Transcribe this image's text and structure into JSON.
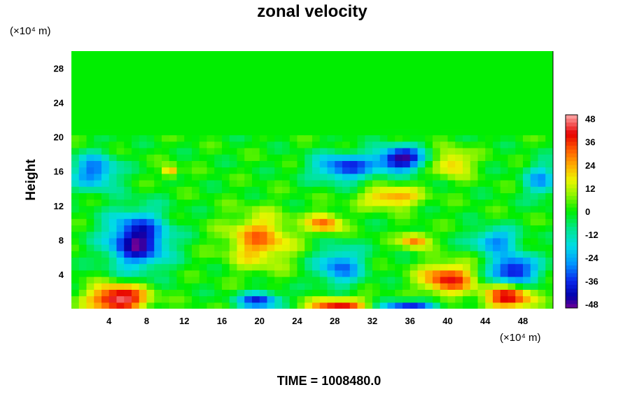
{
  "chart_data": {
    "type": "heatmap",
    "title": "zonal velocity",
    "ylabel": "Height",
    "xlabel": "",
    "y_unit": "(×10⁴ m)",
    "x_unit": "(×10⁴ m)",
    "footer": "TIME = 1008480.0",
    "xlim": [
      0,
      51.2
    ],
    "ylim": [
      0,
      30
    ],
    "x_ticks": [
      4,
      8,
      12,
      16,
      20,
      24,
      28,
      32,
      36,
      40,
      44,
      48
    ],
    "y_ticks": [
      4,
      8,
      12,
      16,
      20,
      24,
      28
    ],
    "colorbar": {
      "range": [
        -50,
        50
      ],
      "tick_labels": [
        "48",
        "36",
        "24",
        "12",
        "0",
        "-12",
        "-24",
        "-36",
        "-48"
      ],
      "tick_values": [
        48,
        36,
        24,
        12,
        0,
        -12,
        -24,
        -36,
        -48
      ]
    },
    "features": [
      {
        "x": 5,
        "y": 1.2,
        "value": 50,
        "sx": 3,
        "sy": 1.6
      },
      {
        "x": 46.5,
        "y": 1.4,
        "value": 42,
        "sx": 2.5,
        "sy": 1.5
      },
      {
        "x": 28.5,
        "y": 0.3,
        "value": 40,
        "sx": 3,
        "sy": 1
      },
      {
        "x": 40,
        "y": 3.5,
        "value": 38,
        "sx": 2.8,
        "sy": 1.8
      },
      {
        "x": 20,
        "y": 8,
        "value": 28,
        "sx": 3.4,
        "sy": 3
      },
      {
        "x": 27,
        "y": 10,
        "value": 30,
        "sx": 1.8,
        "sy": 1.2
      },
      {
        "x": 34,
        "y": 13,
        "value": 28,
        "sx": 3,
        "sy": 1.2
      },
      {
        "x": 36.5,
        "y": 8,
        "value": 30,
        "sx": 1.5,
        "sy": 0.9
      },
      {
        "x": 10.5,
        "y": 16,
        "value": 28,
        "sx": 0.8,
        "sy": 0.7
      },
      {
        "x": 40.5,
        "y": 17,
        "value": 24,
        "sx": 2,
        "sy": 1.6
      },
      {
        "x": 7,
        "y": 8,
        "value": -48,
        "sx": 3.2,
        "sy": 3.2
      },
      {
        "x": 47,
        "y": 4.5,
        "value": -44,
        "sx": 2.5,
        "sy": 1.8
      },
      {
        "x": 28.5,
        "y": 5,
        "value": -30,
        "sx": 2.5,
        "sy": 2.2
      },
      {
        "x": 35,
        "y": 17.5,
        "value": -48,
        "sx": 2.6,
        "sy": 1.4
      },
      {
        "x": 29,
        "y": 16.5,
        "value": -36,
        "sx": 3.2,
        "sy": 1.6
      },
      {
        "x": 20,
        "y": 1,
        "value": -38,
        "sx": 2.2,
        "sy": 1
      },
      {
        "x": 36,
        "y": 0.2,
        "value": -40,
        "sx": 3,
        "sy": 0.8
      },
      {
        "x": 2.5,
        "y": 16,
        "value": -32,
        "sx": 2.4,
        "sy": 2
      },
      {
        "x": 45,
        "y": 8,
        "value": -28,
        "sx": 2.5,
        "sy": 1.4
      },
      {
        "x": 50,
        "y": 15,
        "value": -24,
        "sx": 1.8,
        "sy": 2
      }
    ]
  }
}
